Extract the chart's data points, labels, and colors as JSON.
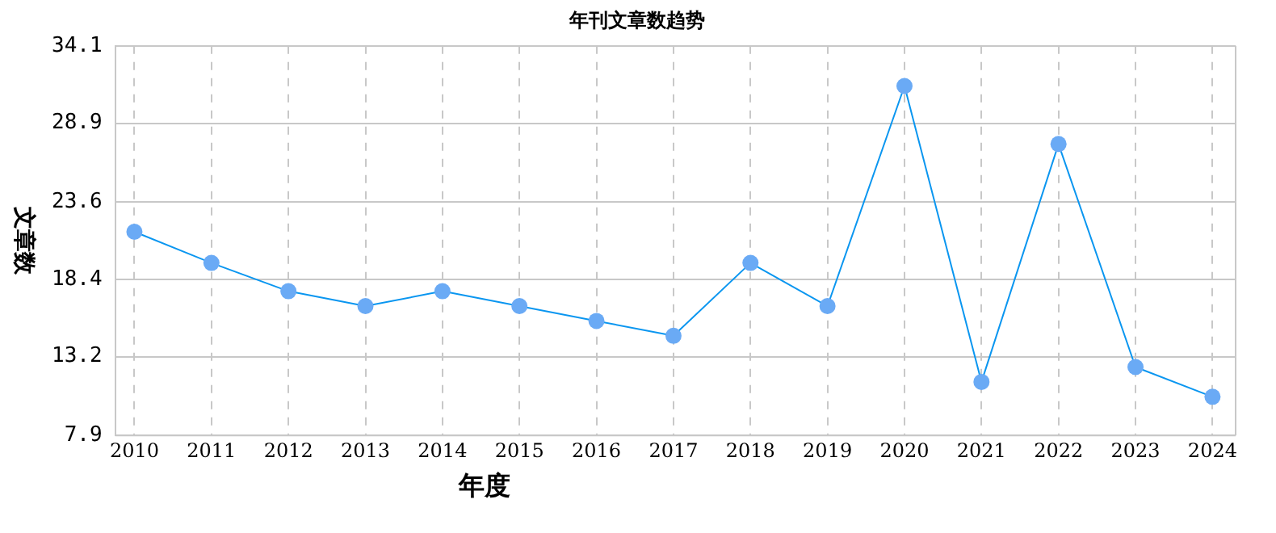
{
  "chart_data": {
    "type": "line",
    "title": "年刊文章数趋势",
    "xlabel": "年度",
    "ylabel": "文章数",
    "x": [
      2010,
      2011,
      2012,
      2013,
      2014,
      2015,
      2016,
      2017,
      2018,
      2019,
      2020,
      2021,
      2022,
      2023,
      2024
    ],
    "series": [
      {
        "color": "#0a96f0",
        "values": [
          21.6,
          19.5,
          17.6,
          16.6,
          17.6,
          16.6,
          15.6,
          14.6,
          19.5,
          16.6,
          31.4,
          11.5,
          27.5,
          12.5,
          10.5
        ]
      }
    ],
    "xlim": [
      2009.75,
      2024.3
    ],
    "xticks": [
      2010,
      2011,
      2012,
      2013,
      2014,
      2015,
      2016,
      2017,
      2018,
      2019,
      2020,
      2021,
      2022,
      2023,
      2024
    ],
    "ylim": [
      7.9,
      34.1
    ],
    "yticks": [
      7.9,
      13.2,
      18.4,
      23.6,
      28.9,
      34.1
    ],
    "grid": true,
    "legend": false,
    "marker": "circle",
    "line_style": "solid"
  }
}
